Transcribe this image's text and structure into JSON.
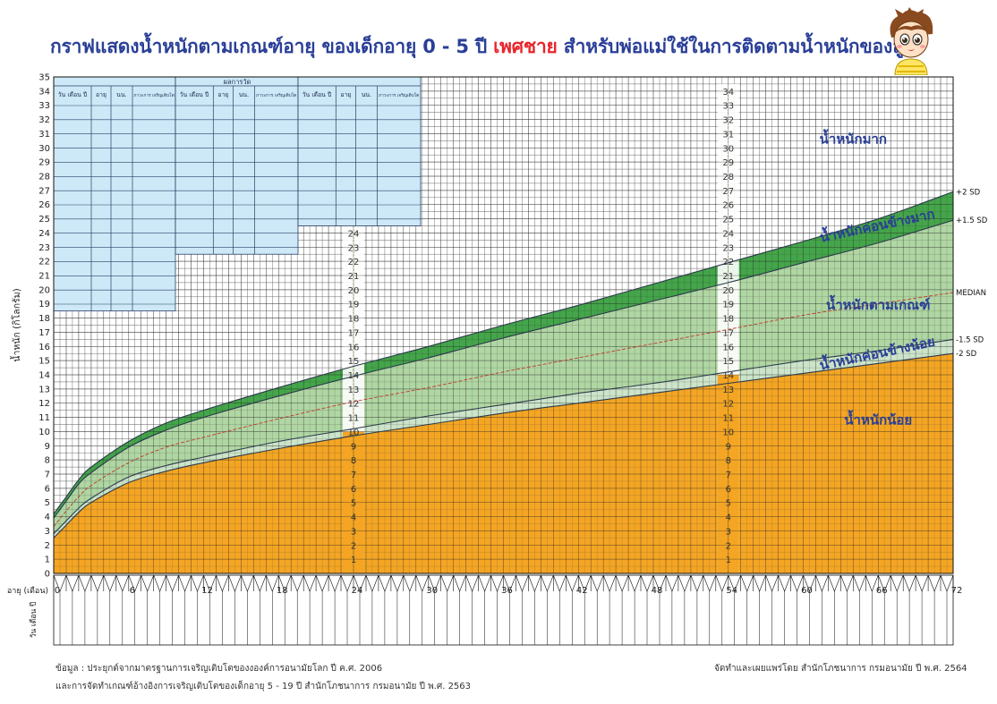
{
  "title": {
    "part1": "กราฟแสดงน้ำหนักตามเกณฑ์อายุ ของเด็กอายุ 0 - 5 ปี ",
    "highlight": "เพศชาย",
    "part2": " สำหรับพ่อแม่ใช้ในการติดตามน้ำหนักของลูก"
  },
  "chart_data": {
    "type": "area",
    "title": "กราฟแสดงน้ำหนักตามเกณฑ์อายุ ของเด็กอายุ 0 - 5 ปี เพศชาย",
    "xlabel": "อายุ (เดือน)",
    "ylabel": "น้ำหนัก (กิโลกรัม)",
    "xlim": [
      0,
      72
    ],
    "ylim": [
      0,
      35
    ],
    "x_ticks": [
      0,
      6,
      12,
      18,
      24,
      30,
      36,
      42,
      48,
      54,
      60,
      66,
      72
    ],
    "y_ticks": [
      0,
      1,
      2,
      3,
      4,
      5,
      6,
      7,
      8,
      9,
      10,
      11,
      12,
      13,
      14,
      15,
      16,
      17,
      18,
      19,
      20,
      21,
      22,
      23,
      24,
      25,
      26,
      27,
      28,
      29,
      30,
      31,
      32,
      33,
      34,
      35
    ],
    "grid": true,
    "age_months": [
      0,
      1,
      2,
      3,
      6,
      9,
      12,
      18,
      24,
      30,
      36,
      42,
      48,
      54,
      60,
      66,
      72
    ],
    "series": [
      {
        "name": "-2 SD",
        "color": "#2b3a4a",
        "values": [
          2.5,
          3.4,
          4.3,
          5.0,
          6.4,
          7.2,
          7.8,
          8.8,
          9.7,
          10.5,
          11.3,
          12.0,
          12.7,
          13.4,
          14.1,
          14.8,
          15.5
        ]
      },
      {
        "name": "-1.5 SD",
        "color": "#2b3a4a",
        "values": [
          2.8,
          3.7,
          4.6,
          5.3,
          6.8,
          7.6,
          8.2,
          9.3,
          10.2,
          11.1,
          11.9,
          12.7,
          13.4,
          14.2,
          15.0,
          15.7,
          16.5
        ]
      },
      {
        "name": "MEDIAN",
        "color": "#c0392b",
        "values": [
          3.3,
          4.4,
          5.4,
          6.2,
          7.8,
          8.9,
          9.6,
          10.9,
          12.1,
          13.1,
          14.2,
          15.2,
          16.2,
          17.2,
          18.2,
          19.0,
          19.8
        ]
      },
      {
        "name": "+1.5 SD",
        "color": "#2b3a4a",
        "values": [
          3.9,
          5.1,
          6.3,
          7.1,
          8.9,
          10.1,
          11.0,
          12.5,
          13.9,
          15.2,
          16.6,
          17.9,
          19.2,
          20.5,
          21.9,
          23.3,
          24.9
        ]
      },
      {
        "name": "+2 SD",
        "color": "#2b3a4a",
        "values": [
          4.2,
          5.4,
          6.6,
          7.5,
          9.3,
          10.6,
          11.5,
          13.1,
          14.6,
          16.0,
          17.5,
          18.9,
          20.4,
          21.9,
          23.4,
          25.0,
          26.9
        ]
      }
    ],
    "zones": [
      {
        "label": "น้ำหนักมาก",
        "color": "#ffffff"
      },
      {
        "label": "น้ำหนักค่อนข้างมาก",
        "color": "#3aa040"
      },
      {
        "label": "น้ำหนักตามเกณฑ์",
        "color": "#a9d39b"
      },
      {
        "label": "น้ำหนักค่อนข้างน้อย",
        "color": "#c8e2c4"
      },
      {
        "label": "น้ำหนักน้อย",
        "color": "#f4a523"
      }
    ],
    "inner_scale_columns": [
      {
        "month": 24,
        "from": 1,
        "to": 24
      },
      {
        "month": 54,
        "from": 1,
        "to": 34
      }
    ]
  },
  "record_table": {
    "title": "ผลการวัด",
    "columns": [
      "วัน เดือน ปี",
      "อายุ",
      "นน.",
      "ภาวะการ เจริญเติบโต"
    ]
  },
  "bottom_row_label": "วัน เดือน ปี",
  "colors": {
    "title_blue": "#2a3f97",
    "title_red": "#e8262b",
    "heavy_green": "#3aa040",
    "normal_green": "#a9d39b",
    "light_green": "#c8e2c4",
    "under_orange": "#f4a523",
    "table_blue": "#cde9f7",
    "zone_text": "#2a3f97"
  },
  "source": {
    "line1": "ข้อมูล : ประยุกต์จากมาตรฐานการเจริญเติบโตของงองค์การอนามัยโลก ปี ค.ศ. 2006",
    "line2": "และการจัดทำเกณฑ์อ้างอิงการเจริญเติบโตของเด็กอายุ 5 - 19  ปี  สำนักโภชนาการ กรมอนามัย ปี พ.ศ. 2563",
    "publisher": "จัดทำและเผยแพร่โดย สำนักโภชนาการ กรมอนามัย ปี พ.ศ. 2564"
  }
}
